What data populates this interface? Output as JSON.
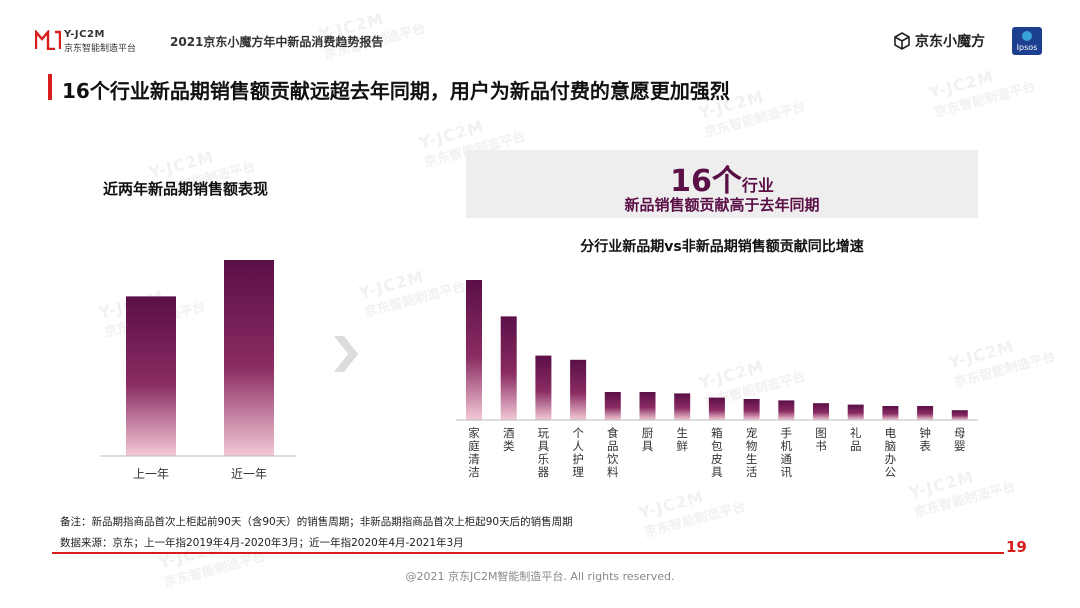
{
  "header": {
    "logo_line1": "Y-JC2M",
    "logo_line2": "京东智能制造平台",
    "report_title": "2021京东小魔方年中新品消费趋势报告",
    "jd_brand": "京东小魔方",
    "ipsos_label": "Ipsos"
  },
  "main_title": "16个行业新品期销售额贡献远超去年同期，用户为新品付费的意愿更加强烈",
  "left": {
    "subtitle": "近两年新品期销售额表现"
  },
  "highlight": {
    "number": "16个",
    "unit": "行业",
    "text": "新品销售额贡献高于去年同期"
  },
  "right": {
    "subtitle": "分行业新品期vs非新品期销售额贡献同比增速"
  },
  "watermark": {
    "line1": "Y-JC2M",
    "line2": "京东智能制造平台"
  },
  "notes": {
    "note1": "备注：新品期指商品首次上柜起前90天（含90天）的销售周期；非新品期指商品首次上柜起90天后的销售周期",
    "note2": "数据来源：京东；上一年指2019年4月-2020年3月；近一年指2020年4月-2021年3月"
  },
  "page_number": "19",
  "copyright": "@2021 京东JC2M智能制造平台. All rights reserved.",
  "colors": {
    "accent_red": "#d71c1c",
    "bar_dark": "#5a0f46",
    "bar_light": "#f3c9d6"
  },
  "chart_data": [
    {
      "type": "bar",
      "categories": [
        "上一年",
        "近一年"
      ],
      "values": [
        0.76,
        0.94
      ],
      "ylim": [
        0,
        1
      ]
    },
    {
      "type": "bar",
      "categories": [
        "家庭清洁",
        "酒类",
        "玩具乐器",
        "个人护理",
        "食品饮料",
        "厨具",
        "生鲜",
        "箱包皮具",
        "宠物生活",
        "手机通讯",
        "图书",
        "礼品",
        "电脑办公",
        "钟表",
        "母婴"
      ],
      "values": [
        1.0,
        0.74,
        0.46,
        0.43,
        0.2,
        0.2,
        0.19,
        0.16,
        0.15,
        0.14,
        0.12,
        0.11,
        0.1,
        0.1,
        0.07
      ],
      "ylim": [
        0,
        1
      ]
    }
  ]
}
